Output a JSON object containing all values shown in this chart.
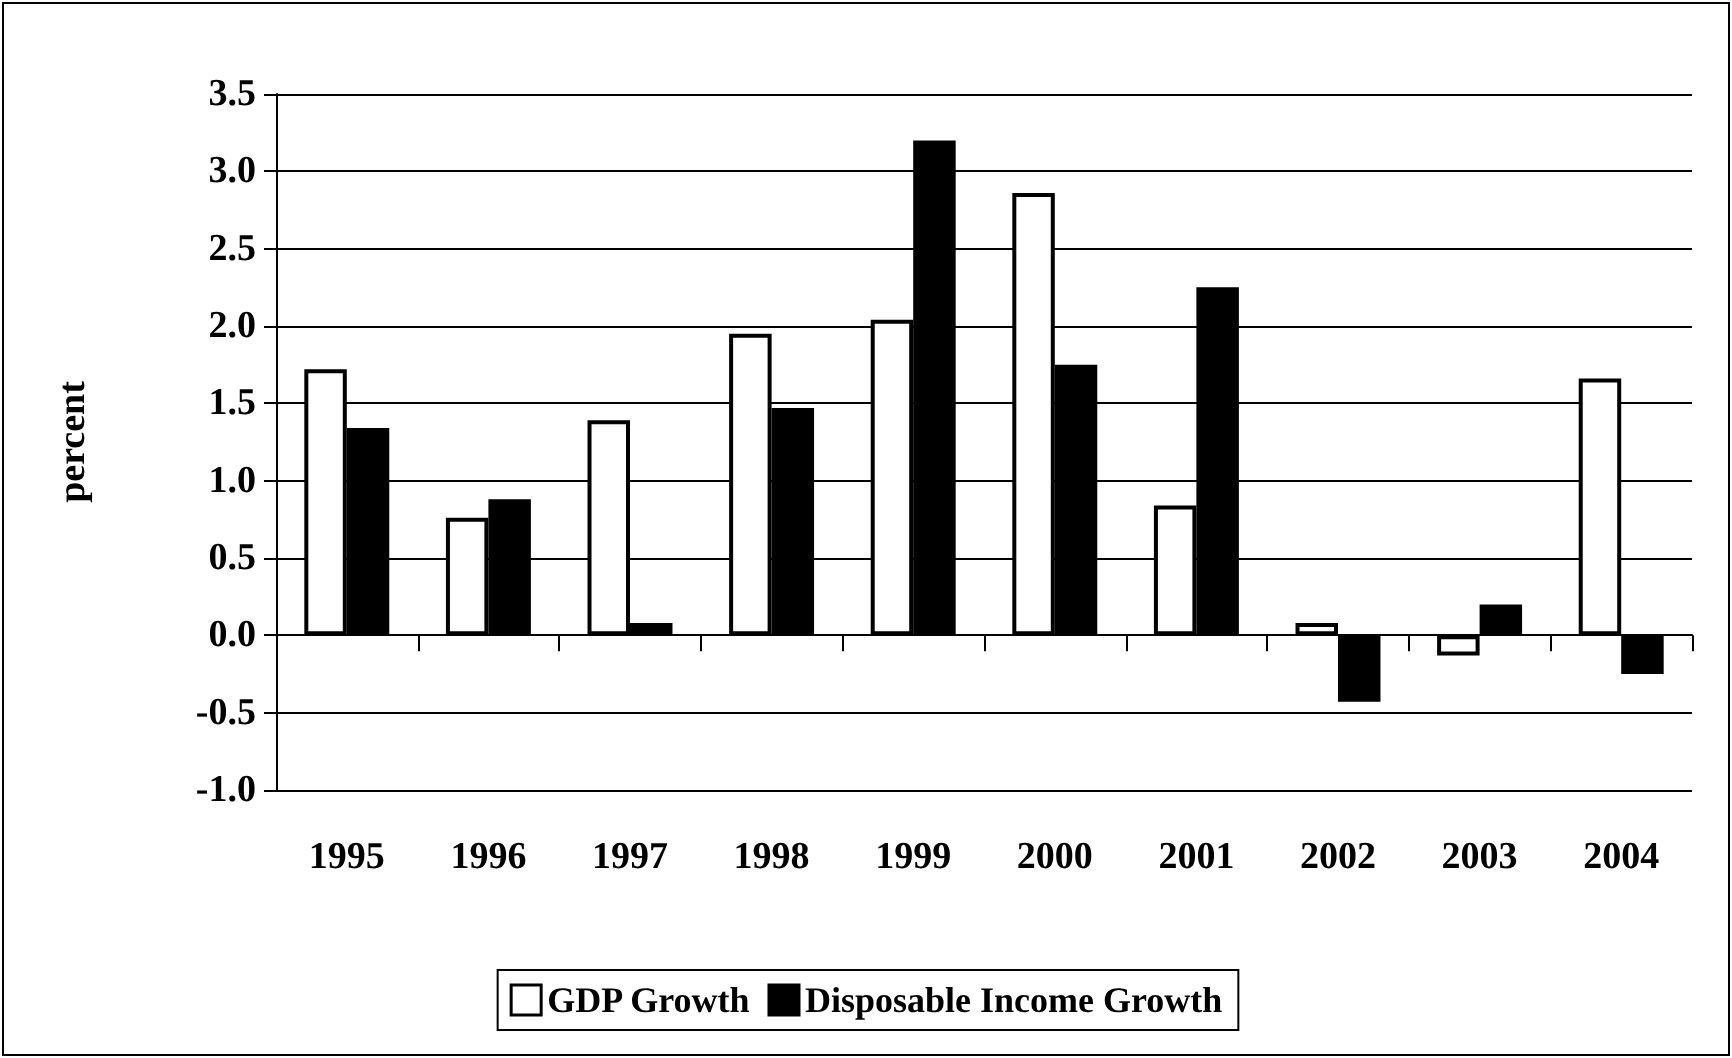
{
  "chart_data": {
    "type": "bar",
    "ylabel": "percent",
    "categories": [
      "1995",
      "1996",
      "1997",
      "1998",
      "1999",
      "2000",
      "2001",
      "2002",
      "2003",
      "2004"
    ],
    "series": [
      {
        "name": "GDP Growth",
        "color": "#ffffff",
        "values": [
          1.72,
          0.76,
          1.39,
          1.95,
          2.04,
          2.86,
          0.84,
          0.08,
          -0.13,
          1.66
        ]
      },
      {
        "name": "Disposable Income Growth",
        "color": "#000000",
        "values": [
          1.34,
          0.88,
          0.08,
          1.47,
          3.2,
          1.75,
          2.25,
          -0.43,
          0.2,
          -0.25
        ]
      }
    ],
    "ylim": [
      -1,
      3.5
    ],
    "yticks": [
      {
        "value": -1,
        "label": "-1.0"
      },
      -0.5,
      {
        "value": 0,
        "label": "0.0"
      },
      0.5,
      {
        "value": 1,
        "label": "1.0"
      },
      1.5,
      {
        "value": 2,
        "label": "2.0"
      },
      2.5,
      {
        "value": 3,
        "label": "3.0"
      },
      3.5
    ],
    "grid": "y",
    "legend": "bottom"
  }
}
